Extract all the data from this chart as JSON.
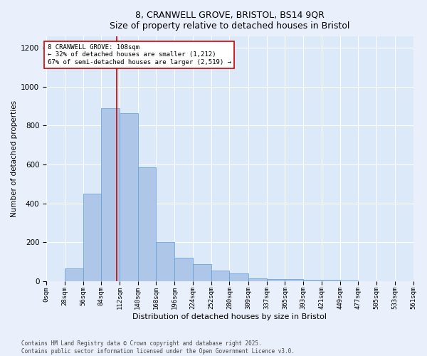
{
  "title_line1": "8, CRANWELL GROVE, BRISTOL, BS14 9QR",
  "title_line2": "Size of property relative to detached houses in Bristol",
  "xlabel": "Distribution of detached houses by size in Bristol",
  "ylabel": "Number of detached properties",
  "annotation_title": "8 CRANWELL GROVE: 108sqm",
  "annotation_line2": "← 32% of detached houses are smaller (1,212)",
  "annotation_line3": "67% of semi-detached houses are larger (2,519) →",
  "marker_value": 108,
  "bin_edges": [
    0,
    28,
    56,
    84,
    112,
    140,
    168,
    196,
    224,
    252,
    280,
    309,
    337,
    365,
    393,
    421,
    449,
    477,
    505,
    533,
    561
  ],
  "bar_heights": [
    0,
    65,
    450,
    890,
    865,
    585,
    200,
    120,
    85,
    55,
    40,
    12,
    8,
    8,
    4,
    4,
    2,
    0,
    0,
    0
  ],
  "bar_color": "#aec6e8",
  "bar_edge_color": "#5b9bd5",
  "marker_color": "#cc0000",
  "background_color": "#dce9f8",
  "fig_background_color": "#eaf0fb",
  "grid_color": "#ffffff",
  "ylim": [
    0,
    1260
  ],
  "yticks": [
    0,
    200,
    400,
    600,
    800,
    1000,
    1200
  ],
  "footnote": "Contains HM Land Registry data © Crown copyright and database right 2025.\nContains public sector information licensed under the Open Government Licence v3.0."
}
